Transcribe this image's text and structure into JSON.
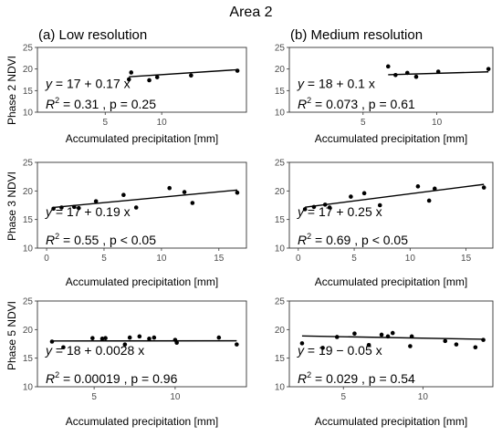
{
  "title": "Area 2",
  "column_titles": [
    "(a) Low resolution",
    "(b) Medium resolution"
  ],
  "row_labels": [
    "Phase 2 NDVI",
    "Phase 3 NDVI",
    "Phase 5 NDVI"
  ],
  "x_axis_label": "Accumulated precipitation [mm]",
  "chart_data": [
    {
      "type": "scatter",
      "column": "(a) Low resolution",
      "ylabel": "Phase 2 NDVI",
      "xlabel": "Accumulated precipitation [mm]",
      "xlim": [
        -1,
        17.5
      ],
      "xticks": [
        5,
        10
      ],
      "ylim": [
        10,
        25
      ],
      "yticks": [
        10,
        15,
        20,
        25
      ],
      "x": [
        7.1,
        7.3,
        8.9,
        9.6,
        12.6,
        16.7
      ],
      "y": [
        17.6,
        19.2,
        17.4,
        18.1,
        18.5,
        19.6
      ],
      "fit": {
        "intercept": 17,
        "slope": 0.17,
        "x_range": [
          7.1,
          16.7
        ]
      },
      "equation": "y = 17 + 0.17 x",
      "stats": "R² = 0.31 , p = 0.25",
      "annotation": {
        "eq_lhs": "y",
        "eq_rhs": "17 + 0.17 x",
        "r2_label": "R",
        "r2_exp": "2",
        "r2_rest": " = 0.31 , p = 0.25"
      }
    },
    {
      "type": "scatter",
      "column": "(b) Medium resolution",
      "ylabel": "Phase 2 NDVI",
      "xlabel": "Accumulated precipitation [mm]",
      "xlim": [
        0,
        13.8
      ],
      "xticks": [
        5,
        10
      ],
      "ylim": [
        10,
        25
      ],
      "yticks": [
        10,
        15,
        20,
        25
      ],
      "x": [
        6.7,
        7.2,
        8.0,
        8.6,
        10.1,
        13.5
      ],
      "y": [
        20.6,
        18.6,
        19.1,
        18.2,
        19.4,
        20.0
      ],
      "fit": {
        "intercept": 18,
        "slope": 0.1,
        "x_range": [
          6.7,
          13.5
        ]
      },
      "equation": "y = 18 + 0.1 x",
      "stats": "R² = 0.073 , p = 0.61",
      "annotation": {
        "eq_lhs": "y",
        "eq_rhs": "18 + 0.1 x",
        "r2_label": "R",
        "r2_exp": "2",
        "r2_rest": " = 0.073 , p = 0.61"
      }
    },
    {
      "type": "scatter",
      "column": "(a) Low resolution",
      "ylabel": "Phase 3 NDVI",
      "xlabel": "Accumulated precipitation [mm]",
      "xlim": [
        -0.8,
        17.4
      ],
      "xticks": [
        0,
        5,
        10,
        15
      ],
      "ylim": [
        10,
        25
      ],
      "yticks": [
        10,
        15,
        20,
        25
      ],
      "x": [
        0.6,
        1.3,
        2.4,
        2.8,
        4.3,
        6.7,
        7.8,
        10.7,
        12.0,
        12.7,
        16.6
      ],
      "y": [
        16.9,
        17.1,
        17.2,
        17.0,
        18.2,
        19.3,
        17.1,
        20.5,
        19.8,
        17.9,
        19.7
      ],
      "fit": {
        "intercept": 17,
        "slope": 0.19,
        "x_range": [
          0.6,
          16.6
        ]
      },
      "equation": "y = 17 + 0.19 x",
      "stats": "R² = 0.55 , p < 0.05",
      "annotation": {
        "eq_lhs": "y",
        "eq_rhs": "17 + 0.19 x",
        "r2_label": "R",
        "r2_exp": "2",
        "r2_rest": " = 0.55 , p < 0.05"
      }
    },
    {
      "type": "scatter",
      "column": "(b) Medium resolution",
      "ylabel": "Phase 3 NDVI",
      "xlabel": "Accumulated precipitation [mm]",
      "xlim": [
        -0.8,
        17.4
      ],
      "xticks": [
        0,
        5,
        10,
        15
      ],
      "ylim": [
        10,
        25
      ],
      "yticks": [
        10,
        15,
        20,
        25
      ],
      "x": [
        0.6,
        1.4,
        2.4,
        2.8,
        4.7,
        5.9,
        7.3,
        10.7,
        11.7,
        12.2,
        16.6
      ],
      "y": [
        16.8,
        17.2,
        17.6,
        17.1,
        19.0,
        19.6,
        17.5,
        20.8,
        18.3,
        20.4,
        20.6
      ],
      "fit": {
        "intercept": 17,
        "slope": 0.25,
        "x_range": [
          0.6,
          16.6
        ]
      },
      "equation": "y = 17 + 0.25 x",
      "stats": "R² = 0.69 , p < 0.05",
      "annotation": {
        "eq_lhs": "y",
        "eq_rhs": "17 + 0.25 x",
        "r2_label": "R",
        "r2_exp": "2",
        "r2_rest": " = 0.69 , p < 0.05"
      }
    },
    {
      "type": "scatter",
      "column": "(a) Low resolution",
      "ylabel": "Phase 5 NDVI",
      "xlabel": "Accumulated precipitation [mm]",
      "xlim": [
        1.5,
        14.4
      ],
      "xticks": [
        5,
        10
      ],
      "ylim": [
        10,
        25
      ],
      "yticks": [
        10,
        15,
        20,
        25
      ],
      "x": [
        2.4,
        3.1,
        4.9,
        5.5,
        5.7,
        6.9,
        7.2,
        7.8,
        8.4,
        8.7,
        10.0,
        10.1,
        12.7,
        13.8
      ],
      "y": [
        17.9,
        16.9,
        18.5,
        18.4,
        18.5,
        17.4,
        18.6,
        18.8,
        18.4,
        18.6,
        18.2,
        17.7,
        18.6,
        17.4
      ],
      "fit": {
        "intercept": 18,
        "slope": 0.0028,
        "x_range": [
          2.4,
          13.8
        ]
      },
      "equation": "y = 18 + 0.0028 x",
      "stats": "R² = 0.00019 , p = 0.96",
      "annotation": {
        "eq_lhs": "y",
        "eq_rhs": "18 + 0.0028 x",
        "r2_label": "R",
        "r2_exp": "2",
        "r2_rest": " = 0.00019 , p = 0.96"
      }
    },
    {
      "type": "scatter",
      "column": "(b) Medium resolution",
      "ylabel": "Phase 5 NDVI",
      "xlabel": "Accumulated precipitation [mm]",
      "xlim": [
        1.6,
        14.4
      ],
      "xticks": [
        5,
        10
      ],
      "ylim": [
        10,
        25
      ],
      "yticks": [
        10,
        15,
        20,
        25
      ],
      "x": [
        2.4,
        3.7,
        4.6,
        5.7,
        6.6,
        7.4,
        7.8,
        8.1,
        9.2,
        9.3,
        11.4,
        12.1,
        13.3,
        13.8
      ],
      "y": [
        17.6,
        16.8,
        18.7,
        19.3,
        17.3,
        19.1,
        18.8,
        19.4,
        17.1,
        18.8,
        18.0,
        17.4,
        16.9,
        18.2
      ],
      "fit": {
        "intercept": 19,
        "slope": -0.05,
        "x_range": [
          2.4,
          13.8
        ]
      },
      "equation": "y = 19 − 0.05 x",
      "stats": "R² = 0.029 , p = 0.54",
      "annotation": {
        "eq_lhs": "y",
        "eq_rhs": "19 − 0.05 x",
        "r2_label": "R",
        "r2_exp": "2",
        "r2_rest": " = 0.029 , p = 0.54"
      }
    }
  ]
}
